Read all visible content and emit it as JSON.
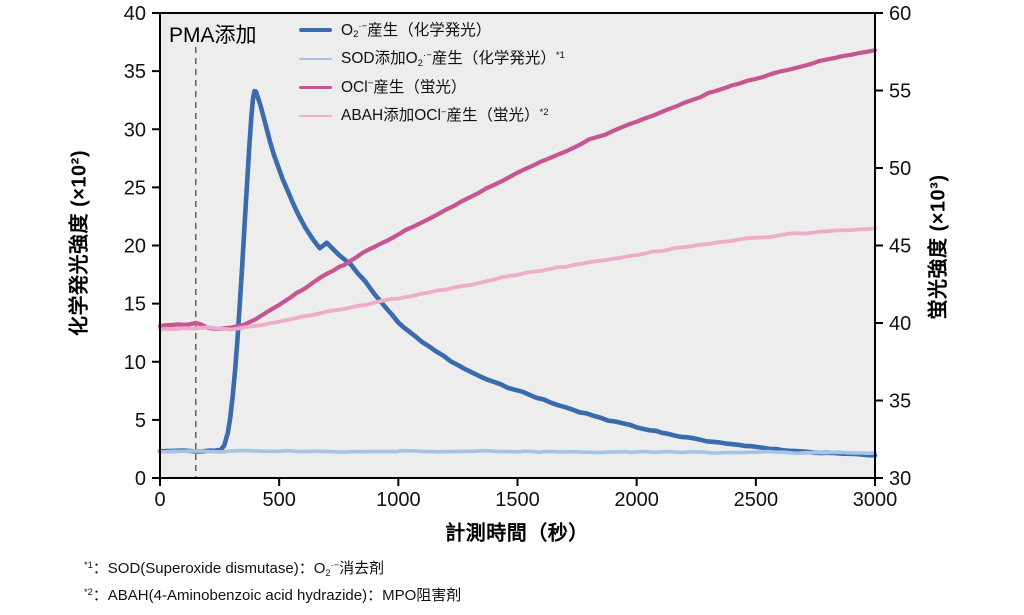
{
  "chart_data": {
    "type": "line",
    "title": "",
    "xlabel": "計測時間（秒）",
    "ylabel_left": "化学発光強度 (×10²)",
    "ylabel_right": "蛍光強度 (×10³)",
    "x_range": [
      0,
      3000
    ],
    "x_ticks": [
      0,
      500,
      1000,
      1500,
      2000,
      2500,
      3000
    ],
    "y_left_range": [
      0,
      40
    ],
    "y_left_ticks": [
      0,
      5,
      10,
      15,
      20,
      25,
      30,
      35,
      40
    ],
    "y_right_range": [
      30,
      60
    ],
    "y_right_ticks": [
      30,
      35,
      40,
      45,
      50,
      55,
      60
    ],
    "grid": false,
    "plot_bg": "#ecedec",
    "frame_color": "#000000",
    "annotation": {
      "label": "PMA添加",
      "x": 150,
      "line_style": "dashed",
      "line_color": "#555555"
    },
    "legend_position": "top-left-inside",
    "series": [
      {
        "name": "O₂·⁻産生（化学発光）",
        "axis": "left",
        "color": "#3a6bac",
        "width": 4.6,
        "points": [
          [
            0,
            2.3
          ],
          [
            100,
            2.3
          ],
          [
            180,
            2.3
          ],
          [
            230,
            2.35
          ],
          [
            255,
            2.45
          ],
          [
            270,
            2.8
          ],
          [
            285,
            3.9
          ],
          [
            295,
            5.2
          ],
          [
            305,
            7.0
          ],
          [
            315,
            9.3
          ],
          [
            325,
            12.0
          ],
          [
            335,
            15.0
          ],
          [
            345,
            18.3
          ],
          [
            355,
            21.8
          ],
          [
            365,
            25.2
          ],
          [
            375,
            28.6
          ],
          [
            383,
            31.0
          ],
          [
            390,
            32.6
          ],
          [
            396,
            33.3
          ],
          [
            403,
            33.2
          ],
          [
            412,
            32.7
          ],
          [
            422,
            32.0
          ],
          [
            434,
            31.1
          ],
          [
            448,
            30.0
          ],
          [
            462,
            28.9
          ],
          [
            478,
            27.8
          ],
          [
            495,
            26.8
          ],
          [
            515,
            25.7
          ],
          [
            535,
            24.7
          ],
          [
            555,
            23.8
          ],
          [
            580,
            22.7
          ],
          [
            610,
            21.5
          ],
          [
            640,
            20.6
          ],
          [
            670,
            19.8
          ],
          [
            700,
            20.2
          ],
          [
            750,
            19.2
          ],
          [
            800,
            18.4
          ],
          [
            860,
            16.9
          ],
          [
            900,
            15.8
          ],
          [
            950,
            14.6
          ],
          [
            1000,
            13.4
          ],
          [
            1050,
            12.5
          ],
          [
            1100,
            11.7
          ],
          [
            1160,
            10.9
          ],
          [
            1220,
            10.1
          ],
          [
            1280,
            9.4
          ],
          [
            1340,
            8.8
          ],
          [
            1400,
            8.3
          ],
          [
            1460,
            7.8
          ],
          [
            1520,
            7.4
          ],
          [
            1580,
            6.9
          ],
          [
            1640,
            6.5
          ],
          [
            1700,
            6.1
          ],
          [
            1760,
            5.7
          ],
          [
            1820,
            5.4
          ],
          [
            1880,
            5.0
          ],
          [
            1940,
            4.7
          ],
          [
            2000,
            4.4
          ],
          [
            2080,
            4.0
          ],
          [
            2160,
            3.7
          ],
          [
            2240,
            3.4
          ],
          [
            2320,
            3.1
          ],
          [
            2400,
            2.9
          ],
          [
            2480,
            2.7
          ],
          [
            2560,
            2.5
          ],
          [
            2640,
            2.35
          ],
          [
            2720,
            2.25
          ],
          [
            2800,
            2.15
          ],
          [
            2900,
            2.05
          ],
          [
            3000,
            1.95
          ]
        ]
      },
      {
        "name": "SOD添加O₂·⁻産生（化学発光）*¹",
        "axis": "left",
        "color": "#a6c3e6",
        "width": 3.6,
        "points": [
          [
            0,
            2.25
          ],
          [
            150,
            2.3
          ],
          [
            300,
            2.28
          ],
          [
            450,
            2.32
          ],
          [
            600,
            2.28
          ],
          [
            750,
            2.3
          ],
          [
            900,
            2.26
          ],
          [
            1050,
            2.3
          ],
          [
            1200,
            2.27
          ],
          [
            1350,
            2.3
          ],
          [
            1500,
            2.26
          ],
          [
            1650,
            2.28
          ],
          [
            1800,
            2.25
          ],
          [
            1950,
            2.27
          ],
          [
            2100,
            2.22
          ],
          [
            2250,
            2.25
          ],
          [
            2400,
            2.2
          ],
          [
            2550,
            2.22
          ],
          [
            2700,
            2.18
          ],
          [
            2850,
            2.18
          ],
          [
            3000,
            2.15
          ]
        ]
      },
      {
        "name": "OCl⁻産生（蛍光）",
        "axis": "right",
        "color": "#c65591",
        "width": 4.2,
        "points": [
          [
            0,
            39.8
          ],
          [
            50,
            39.9
          ],
          [
            100,
            39.9
          ],
          [
            150,
            40.0
          ],
          [
            200,
            39.7
          ],
          [
            250,
            39.6
          ],
          [
            300,
            39.7
          ],
          [
            350,
            39.9
          ],
          [
            400,
            40.2
          ],
          [
            450,
            40.7
          ],
          [
            500,
            41.2
          ],
          [
            550,
            41.7
          ],
          [
            600,
            42.2
          ],
          [
            650,
            42.7
          ],
          [
            700,
            43.2
          ],
          [
            750,
            43.6
          ],
          [
            800,
            44.0
          ],
          [
            850,
            44.5
          ],
          [
            900,
            44.9
          ],
          [
            950,
            45.3
          ],
          [
            1000,
            45.7
          ],
          [
            1100,
            46.5
          ],
          [
            1200,
            47.3
          ],
          [
            1300,
            48.1
          ],
          [
            1400,
            48.9
          ],
          [
            1500,
            49.7
          ],
          [
            1600,
            50.4
          ],
          [
            1700,
            51.1
          ],
          [
            1800,
            51.8
          ],
          [
            1900,
            52.4
          ],
          [
            2000,
            53.0
          ],
          [
            2100,
            53.6
          ],
          [
            2200,
            54.2
          ],
          [
            2300,
            54.8
          ],
          [
            2400,
            55.3
          ],
          [
            2500,
            55.8
          ],
          [
            2600,
            56.2
          ],
          [
            2700,
            56.6
          ],
          [
            2800,
            57.0
          ],
          [
            2900,
            57.3
          ],
          [
            3000,
            57.6
          ]
        ]
      },
      {
        "name": "ABAH添加OCl⁻産生（蛍光）*²",
        "axis": "right",
        "color": "#efacca",
        "width": 3.8,
        "points": [
          [
            0,
            39.6
          ],
          [
            100,
            39.65
          ],
          [
            200,
            39.7
          ],
          [
            300,
            39.6
          ],
          [
            400,
            39.8
          ],
          [
            500,
            40.1
          ],
          [
            600,
            40.4
          ],
          [
            700,
            40.7
          ],
          [
            800,
            41.0
          ],
          [
            900,
            41.3
          ],
          [
            1000,
            41.6
          ],
          [
            1100,
            41.9
          ],
          [
            1200,
            42.2
          ],
          [
            1300,
            42.5
          ],
          [
            1400,
            42.8
          ],
          [
            1500,
            43.1
          ],
          [
            1600,
            43.4
          ],
          [
            1700,
            43.65
          ],
          [
            1800,
            43.9
          ],
          [
            1900,
            44.15
          ],
          [
            2000,
            44.4
          ],
          [
            2100,
            44.65
          ],
          [
            2200,
            44.9
          ],
          [
            2300,
            45.1
          ],
          [
            2400,
            45.3
          ],
          [
            2500,
            45.5
          ],
          [
            2600,
            45.65
          ],
          [
            2700,
            45.8
          ],
          [
            2800,
            45.9
          ],
          [
            2900,
            46.0
          ],
          [
            3000,
            46.1
          ]
        ]
      }
    ]
  },
  "legend": {
    "items": [
      {
        "series_index": 0,
        "swatch_height": 4,
        "parts": [
          {
            "t": "O"
          },
          {
            "t": "2",
            "s": "sub"
          },
          {
            "t": "·−",
            "s": "sup"
          },
          {
            "t": "産生（化学発光）"
          }
        ]
      },
      {
        "series_index": 1,
        "swatch_height": 2.5,
        "parts": [
          {
            "t": "SOD添加O"
          },
          {
            "t": "2",
            "s": "sub"
          },
          {
            "t": "·−",
            "s": "sup"
          },
          {
            "t": "産生（化学発光）"
          },
          {
            "t": "*1",
            "s": "sup"
          }
        ]
      },
      {
        "series_index": 2,
        "swatch_height": 3,
        "parts": [
          {
            "t": "OCl"
          },
          {
            "t": "−",
            "s": "sup"
          },
          {
            "t": "産生（蛍光）"
          }
        ]
      },
      {
        "series_index": 3,
        "swatch_height": 2.5,
        "parts": [
          {
            "t": "ABAH添加OCl"
          },
          {
            "t": "−",
            "s": "sup"
          },
          {
            "t": "産生（蛍光）"
          },
          {
            "t": "*2",
            "s": "sup"
          }
        ]
      }
    ]
  },
  "footnotes": [
    {
      "parts": [
        {
          "t": "*1",
          "s": "sup"
        },
        {
          "t": "：SOD(Superoxide dismutase)：O"
        },
        {
          "t": "2",
          "s": "sub"
        },
        {
          "t": "·−",
          "s": "sup"
        },
        {
          "t": "消去剤"
        }
      ]
    },
    {
      "parts": [
        {
          "t": "*2",
          "s": "sup"
        },
        {
          "t": "：ABAH(4-Aminobenzoic acid hydrazide)：MPO阻害剤"
        }
      ]
    }
  ]
}
